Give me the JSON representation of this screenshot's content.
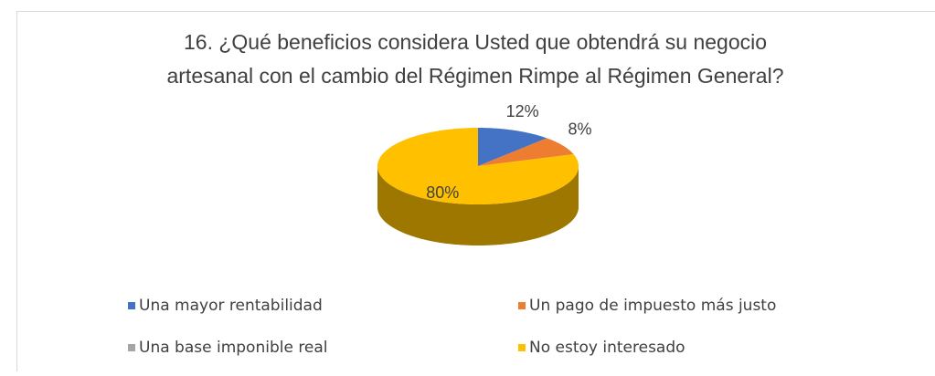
{
  "chart_data": {
    "type": "pie",
    "title": [
      "16. ¿Qué beneficios considera Usted que obtendrá su negocio",
      "artesanal con el cambio del Régimen Rimpe al Régimen General?"
    ],
    "categories": [
      "Una mayor rentabilidad",
      "Un pago de impuesto más justo",
      "Una base imponible real",
      "No estoy interesado"
    ],
    "values": [
      12,
      8,
      0,
      80
    ],
    "value_labels": [
      "12%",
      "8%",
      null,
      "80%"
    ],
    "colors": [
      "#4472c4",
      "#ed7d31",
      "#a5a5a5",
      "#ffc000"
    ]
  }
}
